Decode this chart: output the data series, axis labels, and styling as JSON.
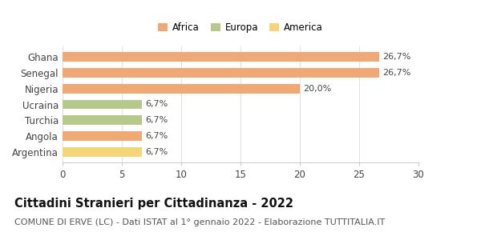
{
  "categories": [
    "Ghana",
    "Senegal",
    "Nigeria",
    "Ucraina",
    "Turchia",
    "Angola",
    "Argentina"
  ],
  "values": [
    26.7,
    26.7,
    20.0,
    6.7,
    6.7,
    6.7,
    6.7
  ],
  "bar_colors": [
    "#F0A875",
    "#F0A875",
    "#F0A875",
    "#B5C98A",
    "#B5C98A",
    "#F0A875",
    "#F5D57A"
  ],
  "continent": [
    "Africa",
    "Africa",
    "Africa",
    "Europa",
    "Europa",
    "Africa",
    "America"
  ],
  "labels": [
    "26,7%",
    "26,7%",
    "20,0%",
    "6,7%",
    "6,7%",
    "6,7%",
    "6,7%"
  ],
  "xlim": [
    0,
    30
  ],
  "xticks": [
    0,
    5,
    10,
    15,
    20,
    25,
    30
  ],
  "title": "Cittadini Stranieri per Cittadinanza - 2022",
  "subtitle": "COMUNE DI ERVE (LC) - Dati ISTAT al 1° gennaio 2022 - Elaborazione TUTTITALIA.IT",
  "legend_labels": [
    "Africa",
    "Europa",
    "America"
  ],
  "legend_colors": [
    "#F0A875",
    "#B5C98A",
    "#F5D57A"
  ],
  "background_color": "#ffffff",
  "title_fontsize": 10.5,
  "subtitle_fontsize": 8,
  "label_fontsize": 8,
  "tick_fontsize": 8.5
}
